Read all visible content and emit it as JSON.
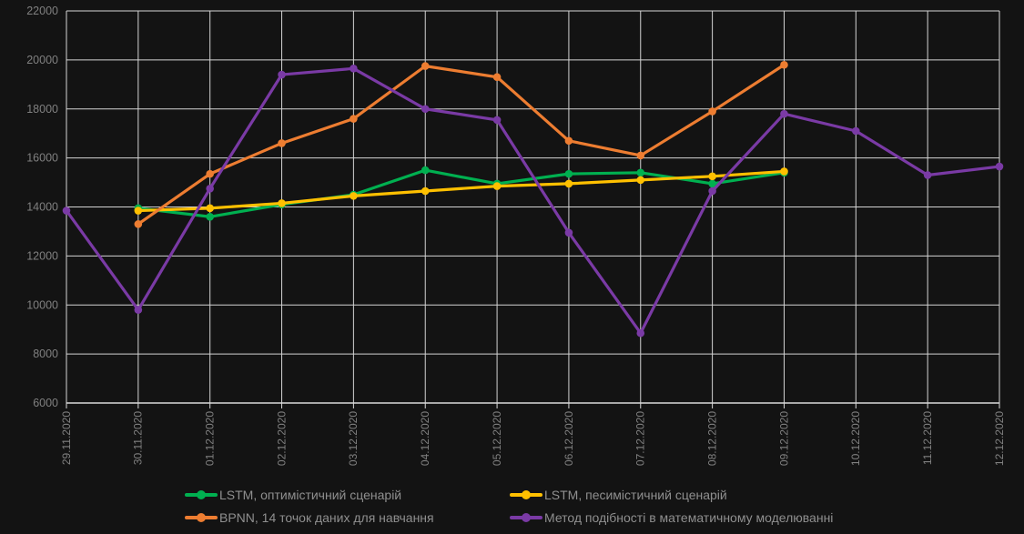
{
  "chart_data": {
    "type": "line",
    "title": "",
    "x_categories": [
      "29.11.2020",
      "30.11.2020",
      "01.12.2020",
      "02.12.2020",
      "03.12.2020",
      "04.12.2020",
      "05.12.2020",
      "06.12.2020",
      "07.12.2020",
      "08.12.2020",
      "09.12.2020",
      "10.12.2020",
      "11.12.2020",
      "12.12.2020"
    ],
    "ylim": [
      6000,
      22000
    ],
    "ytick_step": 2000,
    "ytick_labels": [
      "22000",
      "20000",
      "18000",
      "16000",
      "14000",
      "12000",
      "10000",
      "8000",
      "6000"
    ],
    "grid": "both",
    "legend_position": "bottom",
    "series": [
      {
        "name": "LSTM, оптимістичний сценарій",
        "color": "#00B050",
        "values": [
          null,
          13950,
          13600,
          14100,
          14500,
          15500,
          14950,
          15350,
          15400,
          14950,
          15400,
          null,
          null,
          null
        ]
      },
      {
        "name": "LSTM, песимістичний сценарій",
        "color": "#FFC000",
        "values": [
          null,
          13850,
          13950,
          14150,
          14450,
          14650,
          14850,
          14950,
          15100,
          15250,
          15450,
          null,
          null,
          null
        ]
      },
      {
        "name": "BPNN, 14 точок даних для навчання",
        "color": "#ED7D31",
        "values": [
          null,
          13300,
          15350,
          16600,
          17600,
          19750,
          19300,
          16700,
          16100,
          17900,
          19800,
          null,
          null,
          null
        ]
      },
      {
        "name": "Метод подібності в математичному моделюванні",
        "color": "#7A3AA5",
        "values": [
          13850,
          9800,
          14750,
          19400,
          19650,
          18000,
          17550,
          12950,
          8850,
          14650,
          17800,
          17100,
          15300,
          15650
        ]
      }
    ]
  },
  "colors": {
    "background": "#131313",
    "gridline": "#d4d4d4",
    "axis_line": "#d9d9d9",
    "tick_label": "#808080",
    "legend_text": "#8f8f8f"
  }
}
